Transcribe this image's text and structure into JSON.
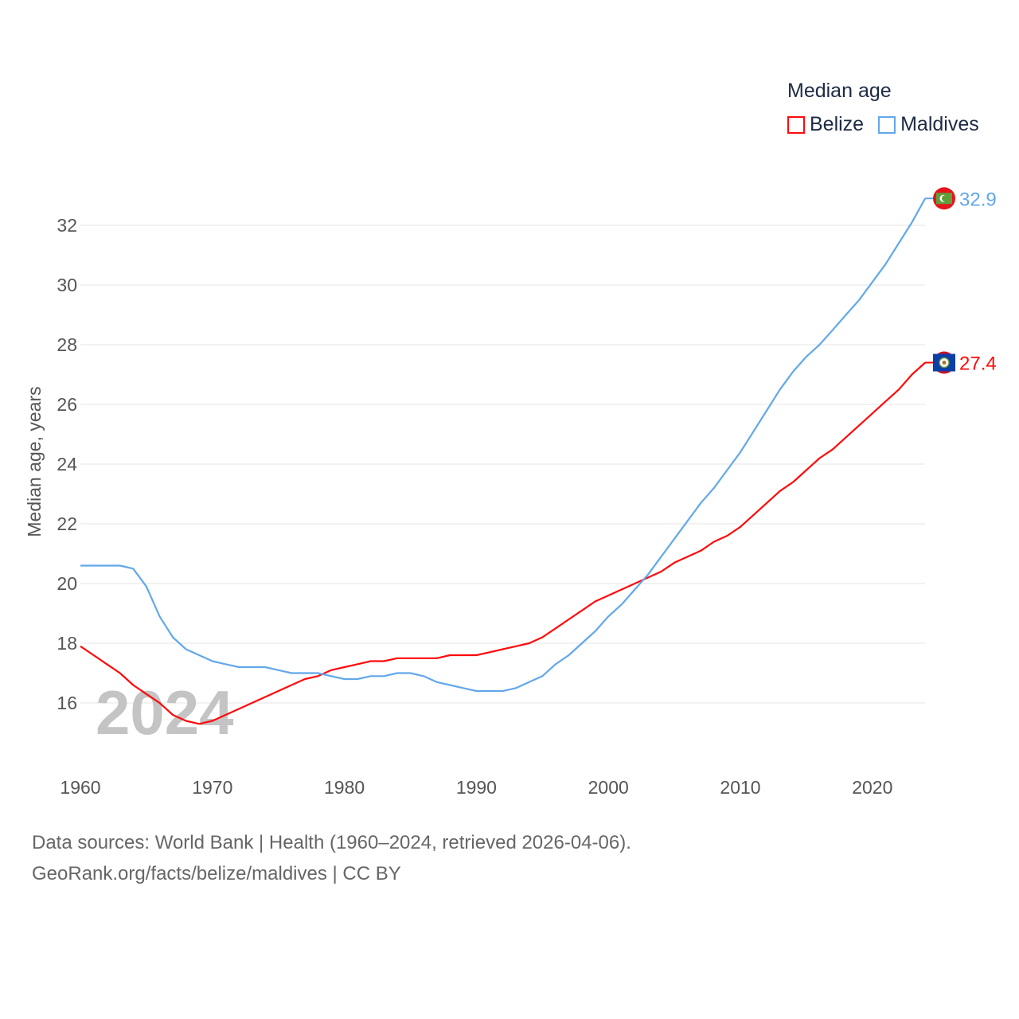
{
  "chart_data": {
    "type": "line",
    "title": "Median age",
    "xlabel": "",
    "ylabel": "Median age, years",
    "xlim": [
      1960,
      2024
    ],
    "ylim": [
      14,
      33.5
    ],
    "yticks": [
      16,
      18,
      20,
      22,
      24,
      26,
      28,
      30,
      32
    ],
    "xticks": [
      1960,
      1970,
      1980,
      1990,
      2000,
      2010,
      2020
    ],
    "grid": true,
    "legend_position": "top-right",
    "watermark_year": "2024",
    "x_start": 1960,
    "series": [
      {
        "name": "Belize",
        "color": "#ff0a0a",
        "end_label": "27.4",
        "values": [
          17.9,
          17.6,
          17.3,
          17.0,
          16.6,
          16.3,
          16.0,
          15.6,
          15.4,
          15.3,
          15.4,
          15.6,
          15.8,
          16.0,
          16.2,
          16.4,
          16.6,
          16.8,
          16.9,
          17.1,
          17.2,
          17.3,
          17.4,
          17.4,
          17.5,
          17.5,
          17.5,
          17.5,
          17.6,
          17.6,
          17.6,
          17.7,
          17.8,
          17.9,
          18.0,
          18.2,
          18.5,
          18.8,
          19.1,
          19.4,
          19.6,
          19.8,
          20.0,
          20.2,
          20.4,
          20.7,
          20.9,
          21.1,
          21.4,
          21.6,
          21.9,
          22.3,
          22.7,
          23.1,
          23.4,
          23.8,
          24.2,
          24.5,
          24.9,
          25.3,
          25.7,
          26.1,
          26.5,
          27.0,
          27.4
        ]
      },
      {
        "name": "Maldives",
        "color": "#62a8ea",
        "end_label": "32.9",
        "values": [
          20.6,
          20.6,
          20.6,
          20.6,
          20.5,
          19.9,
          18.9,
          18.2,
          17.8,
          17.6,
          17.4,
          17.3,
          17.2,
          17.2,
          17.2,
          17.1,
          17.0,
          17.0,
          17.0,
          16.9,
          16.8,
          16.8,
          16.9,
          16.9,
          17.0,
          17.0,
          16.9,
          16.7,
          16.6,
          16.5,
          16.4,
          16.4,
          16.4,
          16.5,
          16.7,
          16.9,
          17.3,
          17.6,
          18.0,
          18.4,
          18.9,
          19.3,
          19.8,
          20.3,
          20.9,
          21.5,
          22.1,
          22.7,
          23.2,
          23.8,
          24.4,
          25.1,
          25.8,
          26.5,
          27.1,
          27.6,
          28.0,
          28.5,
          29.0,
          29.5,
          30.1,
          30.7,
          31.4,
          32.1,
          32.9
        ]
      }
    ]
  },
  "legend": {
    "title": "Median age",
    "items": [
      "Belize",
      "Maldives"
    ]
  },
  "footer": {
    "line1": "Data sources: World Bank | Health (1960–2024, retrieved 2026-04-06).",
    "line2": "GeoRank.org/facts/belize/maldives | CC BY"
  }
}
